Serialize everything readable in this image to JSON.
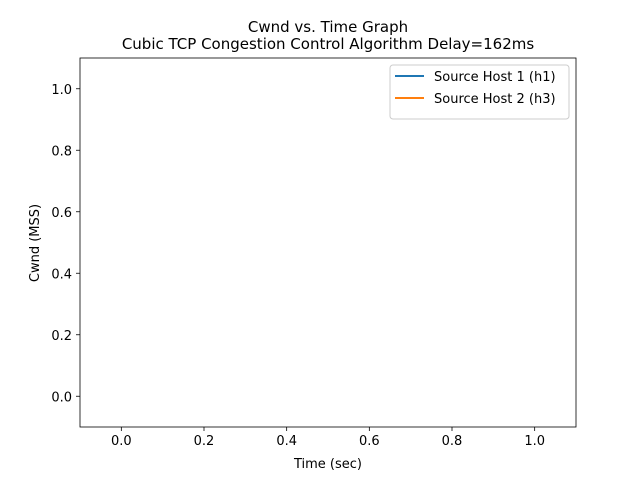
{
  "chart_data": {
    "type": "line",
    "title": "Cwnd vs. Time Graph",
    "subtitle": "Cubic TCP Congestion Control Algorithm Delay=162ms",
    "xlabel": "Time (sec)",
    "ylabel": "Cwnd (MSS)",
    "xlim": [
      -0.1,
      1.1
    ],
    "ylim": [
      -0.1,
      1.1
    ],
    "xticks": [
      0.0,
      0.2,
      0.4,
      0.6,
      0.8,
      1.0
    ],
    "yticks": [
      0.0,
      0.2,
      0.4,
      0.6,
      0.8,
      1.0
    ],
    "xtick_labels": [
      "0.0",
      "0.2",
      "0.4",
      "0.6",
      "0.8",
      "1.0"
    ],
    "ytick_labels": [
      "0.0",
      "0.2",
      "0.4",
      "0.6",
      "0.8",
      "1.0"
    ],
    "grid": false,
    "legend_position": "top-right",
    "series": [
      {
        "name": "Source Host 1 (h1)",
        "color": "#1f77b4",
        "x": [],
        "y": []
      },
      {
        "name": "Source Host 2 (h3)",
        "color": "#ff7f0e",
        "x": [],
        "y": []
      }
    ]
  }
}
